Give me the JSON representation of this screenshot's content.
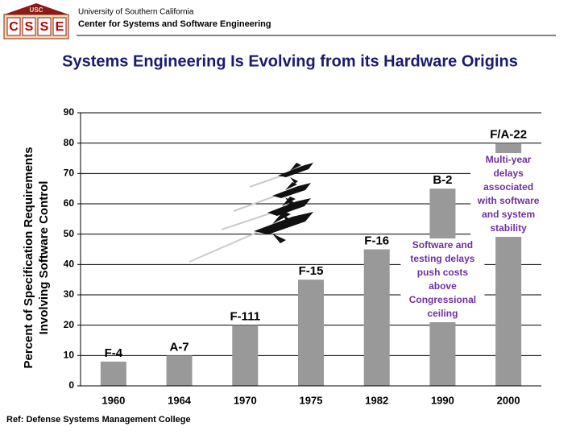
{
  "header": {
    "logo_top": "USC",
    "logo_letters": [
      "C",
      "S",
      "S",
      "E"
    ],
    "university": "University of Southern California",
    "center": "Center for Systems and Software Engineering"
  },
  "chart_data": {
    "type": "bar",
    "title": "Systems Engineering Is Evolving from its Hardware Origins",
    "y_label": [
      "Percent of Specification Requirements",
      "Involving Software Control"
    ],
    "categories": [
      "1960",
      "1964",
      "1970",
      "1975",
      "1982",
      "1990",
      "2000"
    ],
    "values": [
      8,
      10,
      20,
      35,
      45,
      65,
      80
    ],
    "bar_labels": [
      "F-4",
      "A-7",
      "F-111",
      "F-15",
      "F-16",
      "B-2",
      "F/A-22"
    ],
    "color": "#999999",
    "ylim": [
      0,
      90
    ],
    "yticks": [
      0,
      10,
      20,
      30,
      40,
      50,
      60,
      70,
      80,
      90
    ],
    "grid": true,
    "annotations": [
      {
        "lines": [
          "Multi-year",
          "delays",
          "associated",
          "with software",
          "and system",
          "stability"
        ],
        "color": "#7030a0"
      },
      {
        "lines": [
          "Software and",
          "testing delays",
          "push costs",
          "above",
          "Congressional",
          "ceiling"
        ],
        "color": "#7030a0"
      }
    ]
  },
  "footer": {
    "ref": "Ref:  Defense Systems Management College"
  }
}
